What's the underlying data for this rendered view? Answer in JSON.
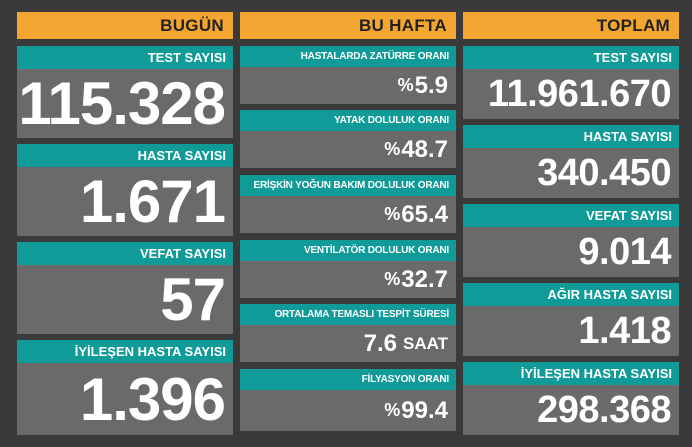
{
  "today": {
    "header": "BUGÜN",
    "cards": [
      {
        "label": "TEST SAYISI",
        "value": "115.328"
      },
      {
        "label": "HASTA SAYISI",
        "value": "1.671"
      },
      {
        "label": "VEFAT SAYISI",
        "value": "57"
      },
      {
        "label": "İYİLEŞEN HASTA SAYISI",
        "value": "1.396"
      }
    ]
  },
  "week": {
    "header": "BU HAFTA",
    "cards": [
      {
        "label": "HASTALARDA ZATÜRRE ORANI",
        "prefix": "%",
        "value": "5.9",
        "unit": ""
      },
      {
        "label": "YATAK DOLULUK ORANI",
        "prefix": "%",
        "value": "48.7",
        "unit": ""
      },
      {
        "label": "ERİŞKİN YOĞUN BAKIM DOLULUK ORANI",
        "prefix": "%",
        "value": "65.4",
        "unit": ""
      },
      {
        "label": "VENTİLATÖR DOLULUK ORANI",
        "prefix": "%",
        "value": "32.7",
        "unit": ""
      },
      {
        "label": "ORTALAMA TEMASLI TESPİT SÜRESİ",
        "prefix": "",
        "value": "7.6",
        "unit": "SAAT"
      },
      {
        "label": "FİLYASYON ORANI",
        "prefix": "%",
        "value": "99.4",
        "unit": ""
      }
    ]
  },
  "total": {
    "header": "TOPLAM",
    "cards": [
      {
        "label": "TEST SAYISI",
        "value": "11.961.670"
      },
      {
        "label": "HASTA SAYISI",
        "value": "340.450"
      },
      {
        "label": "VEFAT SAYISI",
        "value": "9.014"
      },
      {
        "label": "AĞIR HASTA SAYISI",
        "value": "1.418"
      },
      {
        "label": "İYİLEŞEN HASTA SAYISI",
        "value": "298.368"
      }
    ]
  },
  "colors": {
    "header_bg": "#f2a530",
    "label_bg": "#119b98",
    "value_bg": "#6a6a6a",
    "page_bg": "#3a3a3a"
  }
}
